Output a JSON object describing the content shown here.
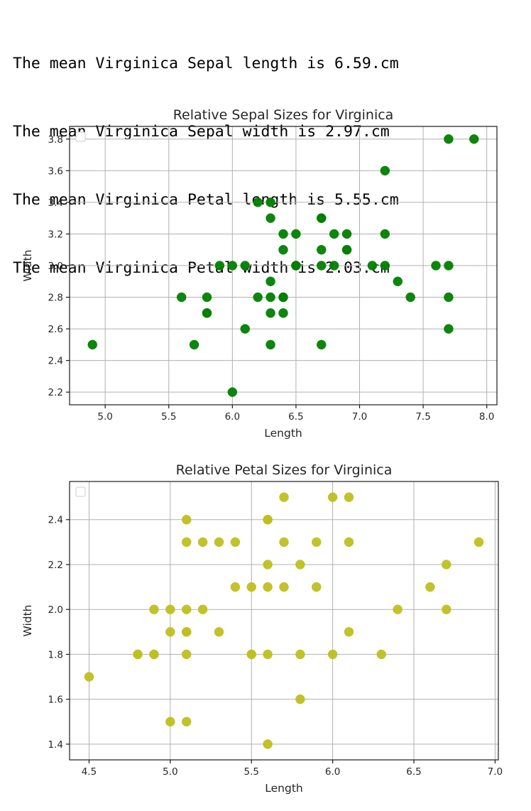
{
  "output_lines": [
    "The mean Virginica Sepal length is 6.59.cm",
    "The mean Virginica Sepal width is 2.97.cm",
    "The mean Virginica Petal length is 5.55.cm",
    "The mean Virginica Petal width is 2.03.cm"
  ],
  "chart_data": [
    {
      "type": "scatter",
      "title": "Relative Sepal Sizes for Virginica",
      "xlabel": "Length",
      "ylabel": "Width",
      "xlim": [
        4.72,
        8.08
      ],
      "ylim": [
        2.12,
        3.88
      ],
      "xticks": [
        5.0,
        5.5,
        6.0,
        6.5,
        7.0,
        7.5,
        8.0
      ],
      "yticks": [
        2.2,
        2.4,
        2.6,
        2.8,
        3.0,
        3.2,
        3.4,
        3.6,
        3.8
      ],
      "xtick_decimals": 1,
      "ytick_decimals": 1,
      "grid": true,
      "legend": "top-left (empty)",
      "color": "#008000",
      "series": [
        {
          "x": [
            6.3,
            5.8,
            7.1,
            6.3,
            6.5,
            7.6,
            4.9,
            7.3,
            6.7,
            7.2,
            6.5,
            6.4,
            6.8,
            5.7,
            5.8,
            6.4,
            6.5,
            7.7,
            7.7,
            6.0,
            6.9,
            5.6,
            7.7,
            6.3,
            6.7,
            7.2,
            6.2,
            6.1,
            6.4,
            7.2,
            7.4,
            7.9,
            6.4,
            6.3,
            6.1,
            7.7,
            6.3,
            6.4,
            6.0,
            6.9,
            6.7,
            6.9,
            5.8,
            6.8,
            6.7,
            6.7,
            6.3,
            6.5,
            6.2,
            5.9
          ],
          "y": [
            3.3,
            2.7,
            3.0,
            2.9,
            3.0,
            3.0,
            2.5,
            2.9,
            2.5,
            3.6,
            3.2,
            2.7,
            3.0,
            2.5,
            2.8,
            3.2,
            3.0,
            3.8,
            2.6,
            2.2,
            3.2,
            2.8,
            2.8,
            2.7,
            3.3,
            3.2,
            2.8,
            3.0,
            2.8,
            3.0,
            2.8,
            3.8,
            2.8,
            2.8,
            2.6,
            3.0,
            3.4,
            3.1,
            3.0,
            3.1,
            3.1,
            3.1,
            2.7,
            3.2,
            3.3,
            3.0,
            2.5,
            3.0,
            3.4,
            3.0
          ]
        }
      ]
    },
    {
      "type": "scatter",
      "title": "Relative Petal Sizes for Virginica",
      "xlabel": "Length",
      "ylabel": "Width",
      "xlim": [
        4.38,
        7.02
      ],
      "ylim": [
        1.33,
        2.57
      ],
      "xticks": [
        4.5,
        5.0,
        5.5,
        6.0,
        6.5,
        7.0
      ],
      "yticks": [
        1.4,
        1.6,
        1.8,
        2.0,
        2.2,
        2.4
      ],
      "xtick_decimals": 1,
      "ytick_decimals": 1,
      "grid": true,
      "legend": "top-left (empty)",
      "color": "#bfbf1f",
      "series": [
        {
          "x": [
            6.0,
            5.1,
            5.9,
            5.6,
            5.8,
            6.6,
            4.5,
            6.3,
            5.8,
            6.1,
            5.1,
            5.3,
            5.5,
            5.0,
            5.1,
            5.3,
            5.5,
            6.7,
            6.9,
            5.0,
            5.7,
            4.9,
            6.7,
            4.9,
            5.7,
            6.0,
            4.8,
            4.9,
            5.6,
            5.8,
            6.1,
            6.4,
            5.6,
            5.1,
            5.6,
            6.1,
            5.6,
            5.5,
            4.8,
            5.4,
            5.6,
            5.1,
            5.1,
            5.9,
            5.7,
            5.2,
            5.0,
            5.2,
            5.4,
            5.1
          ],
          "y": [
            2.5,
            1.9,
            2.1,
            1.8,
            2.2,
            2.1,
            1.7,
            1.8,
            1.8,
            2.5,
            2.0,
            1.9,
            2.1,
            2.0,
            2.4,
            2.3,
            1.8,
            2.2,
            2.3,
            1.5,
            2.3,
            2.0,
            2.0,
            1.8,
            2.1,
            1.8,
            1.8,
            1.8,
            2.1,
            1.6,
            1.9,
            2.0,
            2.2,
            1.5,
            1.4,
            2.3,
            2.4,
            1.8,
            1.8,
            2.1,
            2.4,
            2.3,
            1.9,
            2.3,
            2.5,
            2.3,
            1.9,
            2.0,
            2.3,
            1.8
          ]
        }
      ]
    }
  ]
}
